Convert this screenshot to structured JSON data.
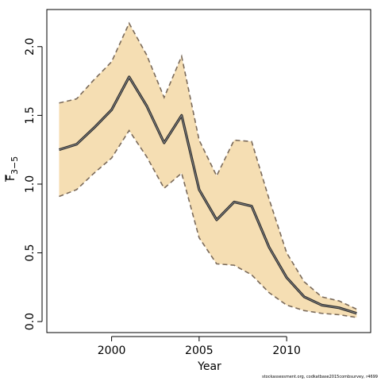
{
  "chart_data": {
    "type": "line",
    "xlabel": "Year",
    "ylabel_main": "F",
    "ylabel_sub": "3−5",
    "xlim": [
      1996.3,
      2014.8
    ],
    "ylim": [
      -0.08,
      2.27
    ],
    "x_ticks": [
      2000,
      2005,
      2010
    ],
    "x_tick_labels": [
      "2000",
      "2005",
      "2010"
    ],
    "y_ticks": [
      0.0,
      0.5,
      1.0,
      1.5,
      2.0
    ],
    "y_tick_labels": [
      "0.0",
      "0.5",
      "1.0",
      "1.5",
      "2.0"
    ],
    "grid": false,
    "x": [
      1997,
      1998,
      1999,
      2000,
      2001,
      2002,
      2003,
      2004,
      2005,
      2006,
      2007,
      2008,
      2009,
      2010,
      2011,
      2012,
      2013,
      2014
    ],
    "series": [
      {
        "role": "estimate",
        "values": [
          1.25,
          1.29,
          1.41,
          1.54,
          1.78,
          1.57,
          1.3,
          1.5,
          0.96,
          0.74,
          0.87,
          0.84,
          0.54,
          0.32,
          0.18,
          0.12,
          0.1,
          0.06
        ]
      },
      {
        "role": "upper",
        "values": [
          1.59,
          1.62,
          1.76,
          1.89,
          2.17,
          1.94,
          1.63,
          1.93,
          1.32,
          1.06,
          1.32,
          1.31,
          0.89,
          0.5,
          0.29,
          0.18,
          0.15,
          0.09
        ]
      },
      {
        "role": "lower",
        "values": [
          0.91,
          0.96,
          1.08,
          1.19,
          1.39,
          1.2,
          0.97,
          1.08,
          0.61,
          0.42,
          0.41,
          0.34,
          0.21,
          0.12,
          0.08,
          0.06,
          0.05,
          0.03
        ]
      }
    ],
    "colors": {
      "band": "#f5deb3",
      "band_edge": "#7a6a5a",
      "line": "#2b2b2b",
      "axis": "#000000"
    }
  },
  "credit": "stockassessment.org, codkatbase2015combsurvey, r4699"
}
